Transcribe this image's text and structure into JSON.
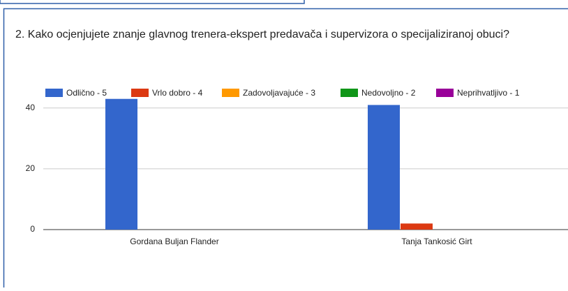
{
  "chart_data": {
    "type": "bar",
    "title": "2. Kako ocjenjujete znanje glavnog trenera-ekspert predavača i supervizora o specijaliziranoj obuci?",
    "categories": [
      "Gordana Buljan Flander",
      "Tanja Tankosić Girt"
    ],
    "series": [
      {
        "name": "Odlično - 5",
        "color": "#3366cc",
        "values": [
          43,
          41
        ]
      },
      {
        "name": "Vrlo dobro - 4",
        "color": "#dc3912",
        "values": [
          0,
          2
        ]
      },
      {
        "name": "Zadovoljavajuće - 3",
        "color": "#ff9900",
        "values": [
          0,
          0
        ]
      },
      {
        "name": "Nedovoljno - 2",
        "color": "#109618",
        "values": [
          0,
          0
        ]
      },
      {
        "name": "Neprihvatljivo - 1",
        "color": "#990099",
        "values": [
          0,
          0
        ]
      }
    ],
    "ylim": [
      0,
      45
    ],
    "yticks": [
      0,
      20,
      40
    ],
    "grid": true,
    "legend": "top"
  }
}
